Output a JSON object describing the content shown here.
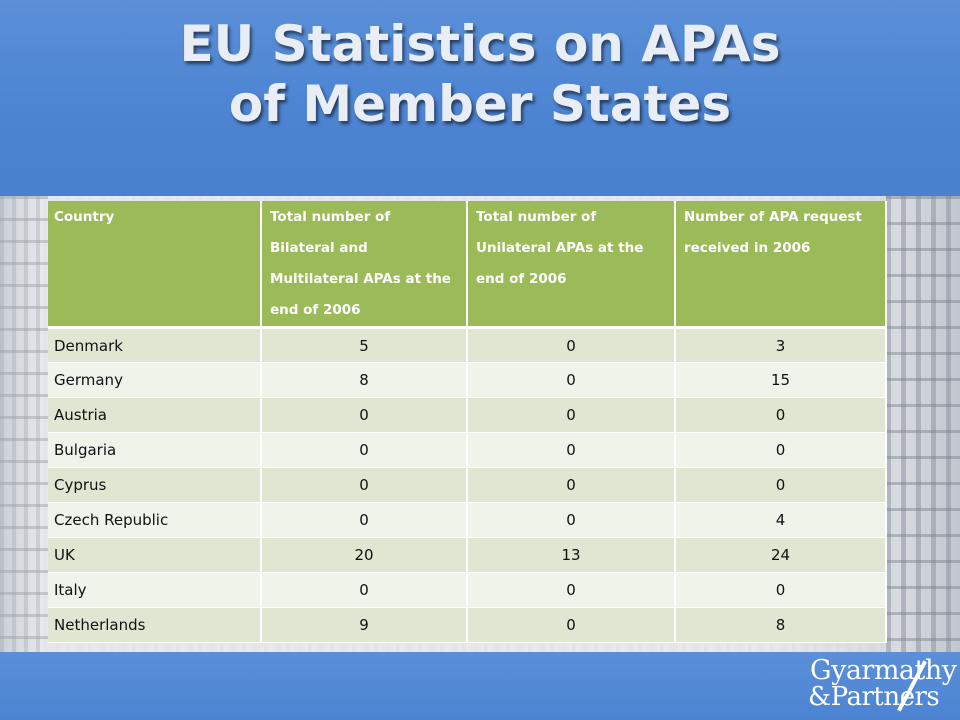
{
  "slide": {
    "title_line1": "EU Statistics on APAs",
    "title_line2": "of Member States"
  },
  "table": {
    "headers": [
      "Country",
      "Total number of Bilateral and Multilateral APAs at the end of 2006",
      "Total number of Unilateral APAs at the end of 2006",
      "Number of APA request received in 2006"
    ],
    "rows": [
      [
        "Denmark",
        "5",
        "0",
        "3"
      ],
      [
        "Germany",
        "8",
        "0",
        "15"
      ],
      [
        "Austria",
        "0",
        "0",
        "0"
      ],
      [
        "Bulgaria",
        "0",
        "0",
        "0"
      ],
      [
        "Cyprus",
        "0",
        "0",
        "0"
      ],
      [
        "Czech Republic",
        "0",
        "0",
        "4"
      ],
      [
        "UK",
        "20",
        "13",
        "24"
      ],
      [
        "Italy",
        "0",
        "0",
        "0"
      ],
      [
        "Netherlands",
        "9",
        "0",
        "8"
      ]
    ]
  },
  "logo": {
    "line1": "Gyarmathy",
    "line2": "&Partners"
  },
  "colors": {
    "header_blue": "#4c84d2",
    "table_header_green": "#9bbb59",
    "row_odd": "#dfe7d2",
    "row_even": "#eff3ea"
  }
}
